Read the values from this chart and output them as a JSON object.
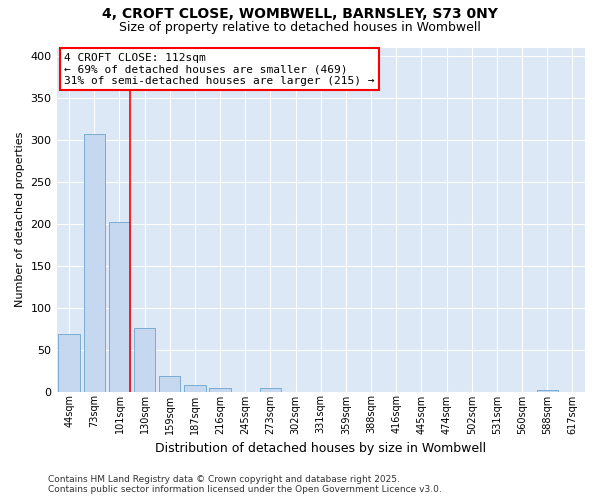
{
  "title_line1": "4, CROFT CLOSE, WOMBWELL, BARNSLEY, S73 0NY",
  "title_line2": "Size of property relative to detached houses in Wombwell",
  "xlabel": "Distribution of detached houses by size in Wombwell",
  "ylabel": "Number of detached properties",
  "bar_labels": [
    "44sqm",
    "73sqm",
    "101sqm",
    "130sqm",
    "159sqm",
    "187sqm",
    "216sqm",
    "245sqm",
    "273sqm",
    "302sqm",
    "331sqm",
    "359sqm",
    "388sqm",
    "416sqm",
    "445sqm",
    "474sqm",
    "502sqm",
    "531sqm",
    "560sqm",
    "588sqm",
    "617sqm"
  ],
  "bar_values": [
    68,
    307,
    202,
    76,
    19,
    8,
    4,
    0,
    4,
    0,
    0,
    0,
    0,
    0,
    0,
    0,
    0,
    0,
    0,
    2,
    0
  ],
  "bar_color": "#c5d8f0",
  "bar_edge_color": "#7aadd4",
  "vline_color": "red",
  "annotation_text": "4 CROFT CLOSE: 112sqm\n← 69% of detached houses are smaller (469)\n31% of semi-detached houses are larger (215) →",
  "annotation_box_color": "white",
  "annotation_box_edge": "red",
  "ylim": [
    0,
    410
  ],
  "yticks": [
    0,
    50,
    100,
    150,
    200,
    250,
    300,
    350,
    400
  ],
  "plot_bg_color": "#dce8f5",
  "fig_bg_color": "#ffffff",
  "grid_color": "#ffffff",
  "footer": "Contains HM Land Registry data © Crown copyright and database right 2025.\nContains public sector information licensed under the Open Government Licence v3.0."
}
